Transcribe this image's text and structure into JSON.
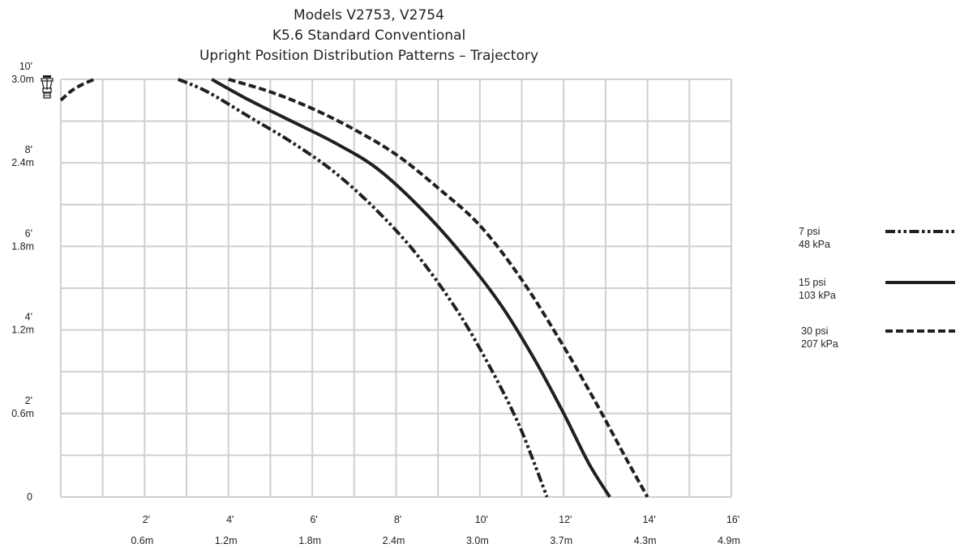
{
  "chart_data": {
    "type": "line",
    "title_lines": [
      "Models V2753, V2754",
      "K5.6 Standard Conventional",
      "Upright Position Distribution Patterns – Trajectory"
    ],
    "xlabel": "",
    "ylabel": "",
    "xlim": [
      0,
      16
    ],
    "ylim": [
      0,
      10
    ],
    "grid": true,
    "x_ticks": [
      {
        "value": 2,
        "ft": "2'",
        "m": "0.6m"
      },
      {
        "value": 4,
        "ft": "4'",
        "m": "1.2m"
      },
      {
        "value": 6,
        "ft": "6'",
        "m": "1.8m"
      },
      {
        "value": 8,
        "ft": "8'",
        "m": "2.4m"
      },
      {
        "value": 10,
        "ft": "10'",
        "m": "3.0m"
      },
      {
        "value": 12,
        "ft": "12'",
        "m": "3.7m"
      },
      {
        "value": 14,
        "ft": "14'",
        "m": "4.3m"
      },
      {
        "value": 16,
        "ft": "16'",
        "m": "4.9m"
      }
    ],
    "y_ticks": [
      {
        "value": 10,
        "ft": "10'",
        "m": "3.0m"
      },
      {
        "value": 8,
        "ft": "8'",
        "m": "2.4m"
      },
      {
        "value": 6,
        "ft": "6'",
        "m": "1.8m"
      },
      {
        "value": 4,
        "ft": "4'",
        "m": "1.2m"
      },
      {
        "value": 2,
        "ft": "2'",
        "m": "0.6m"
      },
      {
        "value": 0,
        "ft": "0",
        "m": ""
      }
    ],
    "legend_position": "right",
    "series": [
      {
        "name": "7 psi",
        "name_metric": "48 kPa",
        "style": "dash-dot-dot",
        "x": [
          2.8,
          3.5,
          4.5,
          5.5,
          6.5,
          7.5,
          8.5,
          9.5,
          10.3,
          10.9,
          11.3,
          11.6
        ],
        "y": [
          10.0,
          9.7,
          9.1,
          8.5,
          7.8,
          6.9,
          5.8,
          4.4,
          3.0,
          1.8,
          0.8,
          0.0
        ]
      },
      {
        "name": "15 psi",
        "name_metric": "103 kPa",
        "style": "solid",
        "x": [
          3.6,
          4.5,
          5.5,
          6.5,
          7.5,
          8.5,
          9.5,
          10.5,
          11.3,
          12.0,
          12.6,
          13.1
        ],
        "y": [
          10.0,
          9.5,
          9.0,
          8.5,
          7.9,
          7.0,
          5.9,
          4.6,
          3.3,
          2.0,
          0.8,
          0.0
        ]
      },
      {
        "name": "30 psi",
        "name_metric": "207 kPa",
        "style": "dashed",
        "x": [
          4.0,
          5.0,
          6.0,
          7.0,
          8.0,
          9.0,
          10.0,
          11.0,
          12.0,
          12.8,
          13.5,
          14.0
        ],
        "y": [
          10.0,
          9.7,
          9.3,
          8.8,
          8.2,
          7.4,
          6.5,
          5.2,
          3.6,
          2.2,
          0.9,
          0.0
        ]
      },
      {
        "name": "",
        "name_metric": "",
        "style": "dashed",
        "x": [
          0.0,
          0.25,
          0.5,
          0.8
        ],
        "y": [
          9.5,
          9.72,
          9.87,
          10.0
        ]
      }
    ]
  },
  "sprinkler_icon": "upright-sprinkler-icon"
}
